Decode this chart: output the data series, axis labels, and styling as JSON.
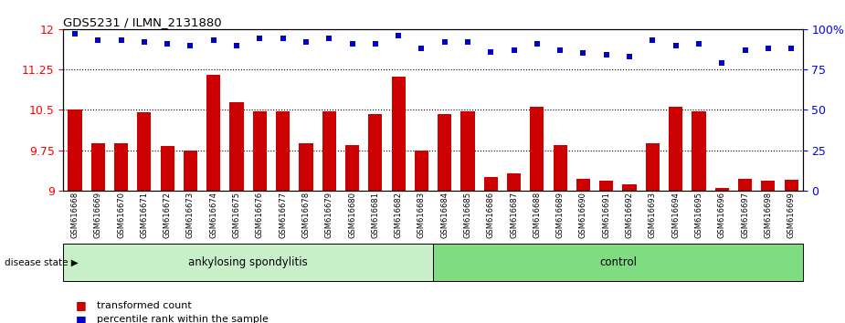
{
  "title": "GDS5231 / ILMN_2131880",
  "samples": [
    "GSM616668",
    "GSM616669",
    "GSM616670",
    "GSM616671",
    "GSM616672",
    "GSM616673",
    "GSM616674",
    "GSM616675",
    "GSM616676",
    "GSM616677",
    "GSM616678",
    "GSM616679",
    "GSM616680",
    "GSM616681",
    "GSM616682",
    "GSM616683",
    "GSM616684",
    "GSM616685",
    "GSM616686",
    "GSM616687",
    "GSM616688",
    "GSM616689",
    "GSM616690",
    "GSM616691",
    "GSM616692",
    "GSM616693",
    "GSM616694",
    "GSM616695",
    "GSM616696",
    "GSM616697",
    "GSM616698",
    "GSM616699"
  ],
  "bar_values": [
    10.5,
    9.88,
    9.88,
    10.45,
    9.82,
    9.75,
    11.15,
    10.65,
    10.47,
    10.47,
    9.88,
    10.48,
    9.85,
    10.42,
    11.12,
    9.75,
    10.42,
    10.48,
    9.25,
    9.32,
    10.55,
    9.85,
    9.22,
    9.18,
    9.12,
    9.88,
    10.55,
    10.48,
    9.05,
    9.22,
    9.18,
    9.2
  ],
  "percentile_values": [
    97,
    93,
    93,
    92,
    91,
    90,
    93,
    90,
    94,
    94,
    92,
    94,
    91,
    91,
    96,
    88,
    92,
    92,
    86,
    87,
    91,
    87,
    85,
    84,
    83,
    93,
    90,
    91,
    79,
    87,
    88,
    88
  ],
  "bar_color": "#cc0000",
  "dot_color": "#0000cc",
  "ylim_left": [
    9.0,
    12.0
  ],
  "ylim_right": [
    0,
    100
  ],
  "yticks_left": [
    9.0,
    9.75,
    10.5,
    11.25,
    12.0
  ],
  "yticks_right": [
    0,
    25,
    50,
    75,
    100
  ],
  "grid_values": [
    9.75,
    10.5,
    11.25
  ],
  "ankylosing_count": 16,
  "control_count": 16,
  "group1_label": "ankylosing spondylitis",
  "group2_label": "control",
  "disease_state_label": "disease state",
  "legend_bar_label": "transformed count",
  "legend_dot_label": "percentile rank within the sample",
  "group1_color": "#c8f0c8",
  "group2_color": "#80dc80",
  "bar_width": 0.6
}
